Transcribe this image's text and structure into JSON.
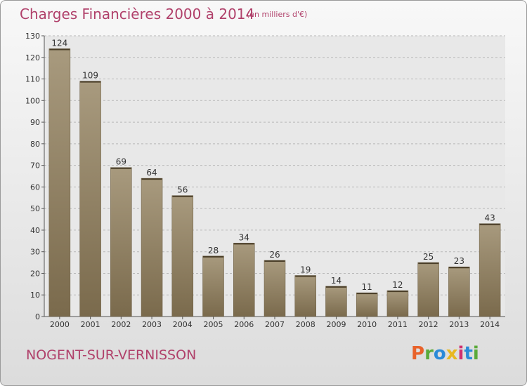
{
  "header": {
    "title": "Charges Financières 2000 à 2014",
    "subtitle": "(en milliers d'€)"
  },
  "footer": {
    "commune": "NOGENT-SUR-VERNISSON",
    "logo_text": "Proxiti",
    "logo_colors": [
      "#e8622a",
      "#5aaa3a",
      "#2a8ad8",
      "#e8b820",
      "#d03070",
      "#2a8ad8",
      "#5aaa3a"
    ]
  },
  "chart_data": {
    "type": "bar",
    "title": "Charges Financières 2000 à 2014",
    "subtitle": "(en milliers d'€)",
    "categories": [
      "2000",
      "2001",
      "2002",
      "2003",
      "2004",
      "2005",
      "2006",
      "2007",
      "2008",
      "2009",
      "2010",
      "2011",
      "2012",
      "2013",
      "2014"
    ],
    "values": [
      124,
      109,
      69,
      64,
      56,
      28,
      34,
      26,
      19,
      14,
      11,
      12,
      25,
      23,
      43
    ],
    "data_labels": [
      "124",
      "109",
      "69",
      "64",
      "56",
      "28",
      "34",
      "26",
      "19",
      "14",
      "11",
      "12",
      "25",
      "23",
      "43"
    ],
    "ylim": [
      0,
      130
    ],
    "yticks": [
      "0",
      "10",
      "20",
      "30",
      "40",
      "50",
      "60",
      "70",
      "80",
      "90",
      "100",
      "110",
      "120",
      "130"
    ],
    "grid": "horizontal dashed",
    "bar_color_top": "#a89a7e",
    "bar_color_bottom": "#7a6a4c"
  }
}
